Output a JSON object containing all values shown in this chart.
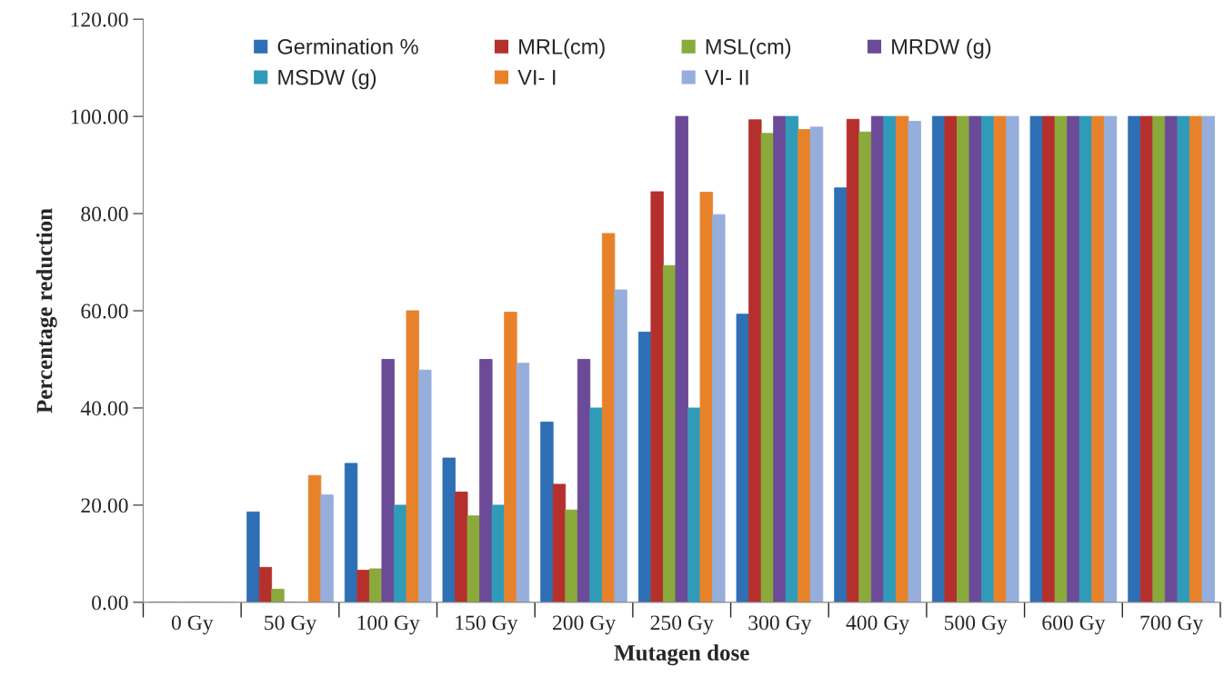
{
  "chart_data": {
    "type": "bar",
    "xlabel": "Mutagen dose",
    "ylabel": "Percentage reduction",
    "categories": [
      "0 Gy",
      "50 Gy",
      "100 Gy",
      "150 Gy",
      "200 Gy",
      "250 Gy",
      "300 Gy",
      "400 Gy",
      "500 Gy",
      "600 Gy",
      "700 Gy"
    ],
    "series": [
      {
        "name": "Germination %",
        "color": "#2e6fb5",
        "values": [
          0,
          18.6,
          28.6,
          29.7,
          37.1,
          55.6,
          59.3,
          85.3,
          100,
          100,
          100
        ]
      },
      {
        "name": "MRL(cm)",
        "color": "#b5302d",
        "values": [
          0,
          7.2,
          6.6,
          22.7,
          24.3,
          84.5,
          99.3,
          99.4,
          100,
          100,
          100
        ]
      },
      {
        "name": "MSL(cm)",
        "color": "#8aaa3b",
        "values": [
          0,
          2.7,
          6.9,
          17.8,
          19.0,
          69.3,
          96.5,
          96.8,
          100,
          100,
          100
        ]
      },
      {
        "name": "MRDW (g)",
        "color": "#6b4a97",
        "values": [
          0,
          0,
          50,
          50,
          50,
          100,
          100,
          100,
          100,
          100,
          100
        ]
      },
      {
        "name": "MSDW (g)",
        "color": "#2f9bb8",
        "values": [
          0,
          0,
          20,
          20,
          40,
          40,
          100,
          100,
          100,
          100,
          100
        ]
      },
      {
        "name": "VI- I",
        "color": "#e8822a",
        "values": [
          0,
          26.1,
          60,
          59.7,
          75.9,
          84.4,
          97.3,
          100,
          100,
          100,
          100
        ]
      },
      {
        "name": "VI- II",
        "color": "#95aedb",
        "values": [
          0,
          22.1,
          47.8,
          49.2,
          64.3,
          79.8,
          97.8,
          99.0,
          100,
          100,
          100
        ]
      }
    ],
    "ylim": [
      0,
      120
    ],
    "yticks": [
      {
        "value": 0,
        "label": "0.00"
      },
      {
        "value": 20,
        "label": "20.00"
      },
      {
        "value": 40,
        "label": "40.00"
      },
      {
        "value": 60,
        "label": "60.00"
      },
      {
        "value": 80,
        "label": "80.00"
      },
      {
        "value": 100,
        "label": "100.00"
      },
      {
        "value": 120,
        "label": "120.00"
      }
    ],
    "grid": false,
    "legend": "top"
  }
}
